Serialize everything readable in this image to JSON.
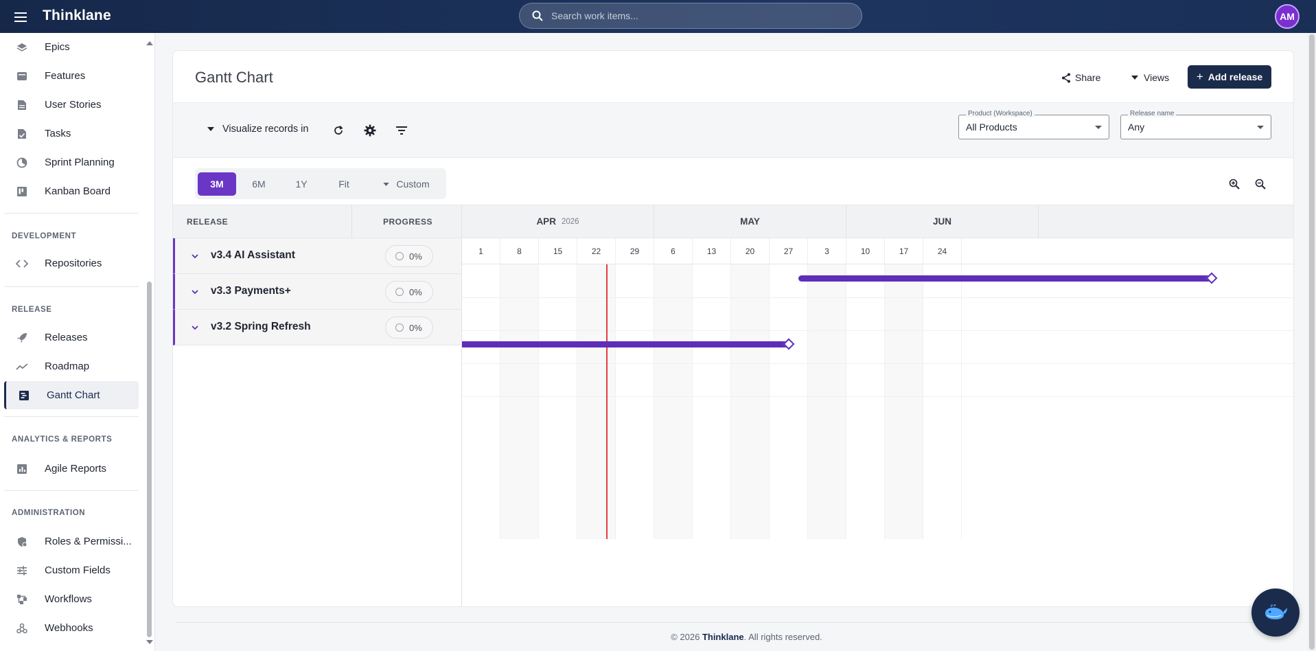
{
  "app": {
    "brand": "Thinklane",
    "search_placeholder": "Search work items...",
    "user_initials": "AM"
  },
  "sidebar": {
    "items_top": [
      {
        "label": "Epics",
        "icon": "layers-icon"
      },
      {
        "label": "Features",
        "icon": "feature-icon"
      },
      {
        "label": "User Stories",
        "icon": "document-icon"
      },
      {
        "label": "Tasks",
        "icon": "task-icon"
      },
      {
        "label": "Sprint Planning",
        "icon": "sprint-icon"
      },
      {
        "label": "Kanban Board",
        "icon": "kanban-icon"
      }
    ],
    "sections": [
      {
        "title": "DEVELOPMENT",
        "items": [
          {
            "label": "Repositories",
            "icon": "code-icon"
          }
        ]
      },
      {
        "title": "RELEASE",
        "items": [
          {
            "label": "Releases",
            "icon": "rocket-icon"
          },
          {
            "label": "Roadmap",
            "icon": "trend-icon"
          },
          {
            "label": "Gantt Chart",
            "icon": "gantt-icon",
            "active": true
          }
        ]
      },
      {
        "title": "ANALYTICS & REPORTS",
        "items": [
          {
            "label": "Agile Reports",
            "icon": "report-icon"
          }
        ]
      },
      {
        "title": "ADMINISTRATION",
        "items": [
          {
            "label": "Roles & Permissi...",
            "icon": "shield-icon"
          },
          {
            "label": "Custom Fields",
            "icon": "sliders-icon"
          },
          {
            "label": "Workflows",
            "icon": "workflow-icon"
          },
          {
            "label": "Webhooks",
            "icon": "webhook-icon"
          }
        ]
      }
    ]
  },
  "header": {
    "title": "Gantt Chart",
    "share_label": "Share",
    "views_label": "Views",
    "add_release_label": "Add release"
  },
  "toolbar": {
    "visualize_label": "Visualize records in",
    "product_filter": {
      "label": "Product (Workspace)",
      "value": "All Products"
    },
    "release_filter": {
      "label": "Release name",
      "value": "Any"
    }
  },
  "ranges": {
    "options": [
      "3M",
      "6M",
      "1Y",
      "Fit",
      "Custom"
    ],
    "selected": "3M"
  },
  "gantt": {
    "columns": {
      "release": "RELEASE",
      "progress": "PROGRESS"
    },
    "months": [
      {
        "name": "APR",
        "year": "2026"
      },
      {
        "name": "MAY",
        "year": ""
      },
      {
        "name": "JUN",
        "year": ""
      }
    ],
    "weeks": [
      "1",
      "8",
      "15",
      "22",
      "29",
      "6",
      "13",
      "20",
      "27",
      "3",
      "10",
      "17",
      "24"
    ],
    "releases": [
      {
        "name": "v3.4 AI Assistant",
        "progress": "0%",
        "start_week": 8.75,
        "end_week": 19.5
      },
      {
        "name": "v3.3 Payments+",
        "progress": "0%",
        "start_week": null,
        "end_week": null
      },
      {
        "name": "v3.2 Spring Refresh",
        "progress": "0%",
        "start_week": 0,
        "end_week": 8.5
      }
    ],
    "today_week": 3.75,
    "colors": {
      "bar": "#5e2eb8",
      "today": "#e53b3b",
      "accent": "#6a36c6"
    }
  },
  "footer": {
    "prefix": "© 2026 ",
    "brand": "Thinklane",
    "suffix": ". All rights reserved."
  }
}
